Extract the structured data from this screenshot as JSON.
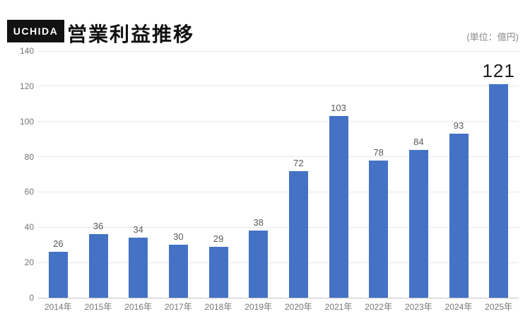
{
  "header": {
    "logo_text": "UCHIDA",
    "title": "営業利益推移",
    "unit_label": "(単位：億円)"
  },
  "chart_data": {
    "type": "bar",
    "title": "営業利益推移",
    "unit": "億円",
    "categories": [
      "2014年",
      "2015年",
      "2016年",
      "2017年",
      "2018年",
      "2019年",
      "2020年",
      "2021年",
      "2022年",
      "2023年",
      "2024年",
      "2025年"
    ],
    "values": [
      26,
      36,
      34,
      30,
      29,
      38,
      72,
      103,
      78,
      84,
      93,
      121
    ],
    "xlabel": "",
    "ylabel": "",
    "ylim": [
      0,
      140
    ],
    "yticks": [
      0,
      20,
      40,
      60,
      80,
      100,
      120,
      140
    ],
    "grid": "horizontal",
    "legend": "none",
    "bar_color": "#4472c4",
    "value_label_color": "#595959",
    "highlight_last_value": true,
    "highlight_value_color": "#1f1f1f",
    "gridline_color": "#e7e7e7",
    "axis_line_color": "#c6c6c6",
    "tick_label_color": "#757575"
  }
}
